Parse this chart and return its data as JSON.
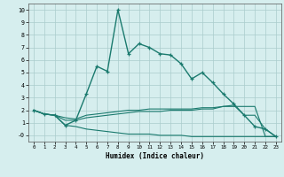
{
  "title": "",
  "xlabel": "Humidex (Indice chaleur)",
  "bg_color": "#d6eeee",
  "line_color": "#1a7a6e",
  "grid_color": "#aacccc",
  "xlim": [
    -0.5,
    23.5
  ],
  "ylim": [
    -0.5,
    10.5
  ],
  "xticks": [
    0,
    1,
    2,
    3,
    4,
    5,
    6,
    7,
    8,
    9,
    10,
    11,
    12,
    13,
    14,
    15,
    16,
    17,
    18,
    19,
    20,
    21,
    22,
    23
  ],
  "yticks": [
    0,
    1,
    2,
    3,
    4,
    5,
    6,
    7,
    8,
    9,
    10
  ],
  "ytick_labels": [
    "-0",
    "1",
    "2",
    "3",
    "4",
    "5",
    "6",
    "7",
    "8",
    "9",
    "10"
  ],
  "curve1_x": [
    0,
    1,
    2,
    3,
    4,
    5,
    6,
    7,
    8,
    9,
    10,
    11,
    12,
    13,
    14,
    15,
    16,
    17,
    18,
    19,
    20,
    21,
    22,
    23
  ],
  "curve1_y": [
    2.0,
    1.7,
    1.6,
    0.8,
    1.2,
    3.3,
    5.5,
    5.1,
    10.0,
    6.5,
    7.3,
    7.0,
    6.5,
    6.4,
    5.7,
    4.5,
    5.0,
    4.2,
    3.3,
    2.5,
    1.6,
    0.7,
    0.5,
    -0.1
  ],
  "curve2_x": [
    0,
    1,
    2,
    3,
    4,
    5,
    6,
    7,
    8,
    9,
    10,
    11,
    12,
    13,
    14,
    15,
    16,
    17,
    18,
    19,
    20,
    21,
    22,
    23
  ],
  "curve2_y": [
    2.0,
    1.7,
    1.6,
    1.4,
    1.3,
    1.6,
    1.7,
    1.8,
    1.9,
    2.0,
    2.0,
    2.1,
    2.1,
    2.1,
    2.1,
    2.1,
    2.2,
    2.2,
    2.3,
    2.3,
    2.3,
    2.3,
    -0.1,
    -0.1
  ],
  "curve3_x": [
    0,
    1,
    2,
    3,
    4,
    5,
    6,
    7,
    8,
    9,
    10,
    11,
    12,
    13,
    14,
    15,
    16,
    17,
    18,
    19,
    20,
    21,
    22,
    23
  ],
  "curve3_y": [
    2.0,
    1.7,
    1.6,
    0.8,
    0.7,
    0.5,
    0.4,
    0.3,
    0.2,
    0.1,
    0.1,
    0.1,
    0.0,
    0.0,
    0.0,
    -0.1,
    -0.1,
    -0.1,
    -0.1,
    -0.1,
    -0.1,
    -0.1,
    -0.1,
    -0.1
  ],
  "curve4_x": [
    0,
    1,
    2,
    3,
    4,
    5,
    6,
    7,
    8,
    9,
    10,
    11,
    12,
    13,
    14,
    15,
    16,
    17,
    18,
    19,
    20,
    21,
    22,
    23
  ],
  "curve4_y": [
    2.0,
    1.7,
    1.6,
    1.2,
    1.2,
    1.4,
    1.5,
    1.6,
    1.7,
    1.8,
    1.9,
    1.9,
    1.9,
    2.0,
    2.0,
    2.0,
    2.1,
    2.1,
    2.3,
    2.4,
    1.6,
    1.6,
    0.5,
    -0.1
  ]
}
